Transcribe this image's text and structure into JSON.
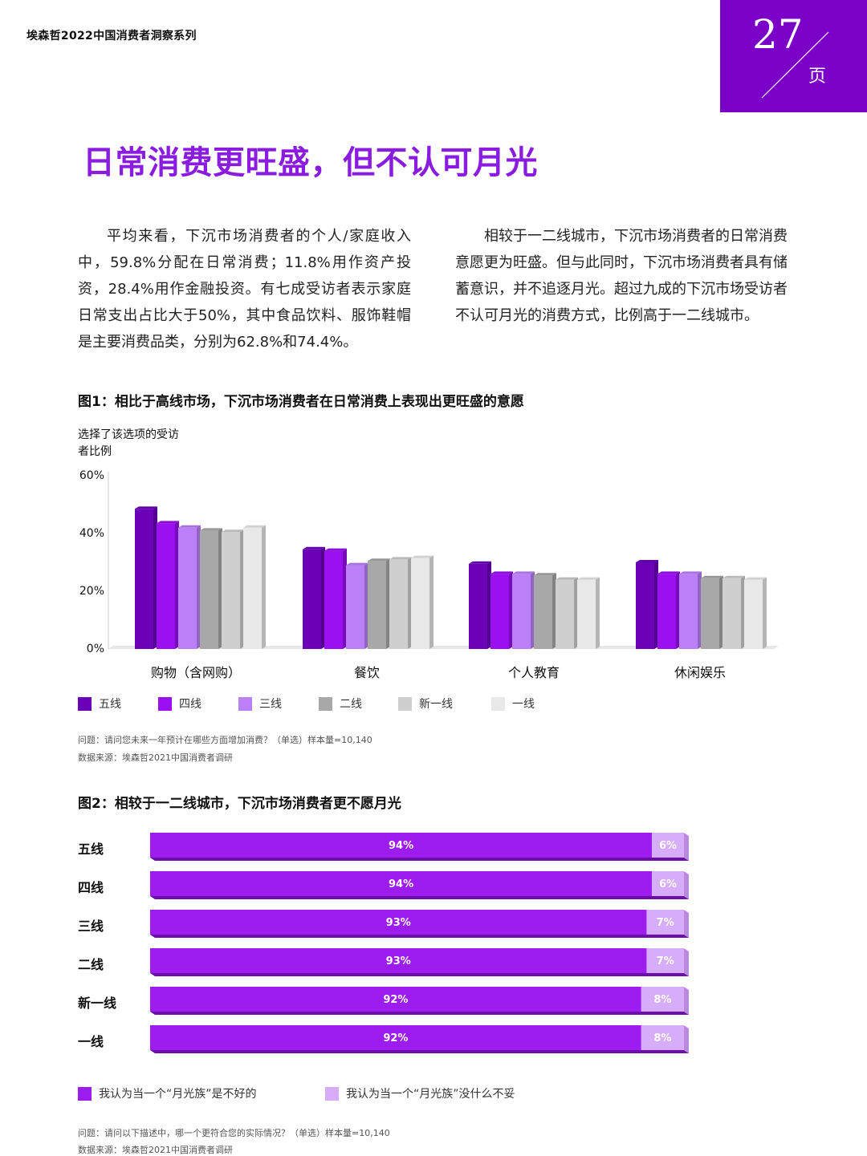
{
  "header": {
    "series_title": "埃森哲2022中国消费者洞察系列",
    "page_number": "27",
    "page_unit": "页"
  },
  "headline": "日常消费更旺盛，但不认可月光",
  "paragraphs": [
    "平均来看，下沉市场消费者的个人/家庭收入中，59.8%分配在日常消费；11.8%用作资产投资，28.4%用作金融投资。有七成受访者表示家庭日常支出占比大于50%，其中食品饮料、服饰鞋帽是主要消费品类，分别为62.8%和74.4%。",
    "相较于一二线城市，下沉市场消费者的日常消费意愿更为旺盛。但与此同时，下沉市场消费者具有储蓄意识，并不追逐月光。超过九成的下沉市场受访者不认可月光的消费方式，比例高于一二线城市。"
  ],
  "figure1": {
    "title": "图1：相比于高线市场，下沉市场消费者在日常消费上表现出更旺盛的意愿",
    "note_question": "问题：请问您未来一年预计在哪些方面增加消费？（单选）样本量=10,140",
    "note_source": "数据来源：埃森哲2021中国消费者调研"
  },
  "figure2": {
    "title": "图2：相较于一二线城市，下沉市场消费者更不愿月光",
    "note_question": "问题：请问以下描述中，哪一个更符合您的实际情况？（单选）样本量=10,140",
    "note_source": "数据来源：埃森哲2021中国消费者调研"
  },
  "chart_data": [
    {
      "type": "bar",
      "ylabel": "选择了该选项的受访者比例",
      "ylim": [
        0,
        60
      ],
      "yticks": [
        "0%",
        "20%",
        "40%",
        "60%"
      ],
      "categories": [
        "购物（含网购）",
        "餐饮",
        "个人教育",
        "休闲娱乐"
      ],
      "legend_position": "bottom",
      "series": [
        {
          "name": "五线",
          "color": "#6a00b8",
          "values": [
            48.5,
            34.5,
            29.5,
            30
          ]
        },
        {
          "name": "四线",
          "color": "#9a10f0",
          "values": [
            43.5,
            34,
            26,
            26
          ]
        },
        {
          "name": "三线",
          "color": "#bb80f8",
          "values": [
            42,
            29,
            26,
            26
          ]
        },
        {
          "name": "二线",
          "color": "#a8a8a8",
          "values": [
            41,
            30.5,
            25.5,
            24.5
          ]
        },
        {
          "name": "新一线",
          "color": "#cfcfcf",
          "values": [
            40.5,
            31,
            24,
            24.5
          ]
        },
        {
          "name": "一线",
          "color": "#e8e8e8",
          "values": [
            42,
            31.5,
            24,
            24
          ]
        }
      ]
    },
    {
      "type": "bar",
      "orientation": "horizontal",
      "stacked": true,
      "categories": [
        "五线",
        "四线",
        "三线",
        "二线",
        "新一线",
        "一线"
      ],
      "legend_position": "bottom",
      "series": [
        {
          "name": "我认为当一个“月光族”是不好的",
          "color": "#9d1cf0",
          "values": [
            94,
            94,
            93,
            93,
            92,
            92
          ],
          "labels": [
            "94%",
            "94%",
            "93%",
            "93%",
            "92%",
            "92%"
          ]
        },
        {
          "name": "我认为当一个“月光族”没什么不妥",
          "color": "#d7acf9",
          "values": [
            6,
            6,
            7,
            7,
            8,
            8
          ],
          "labels": [
            "6%",
            "6%",
            "7%",
            "7%",
            "8%",
            "8%"
          ]
        }
      ]
    }
  ]
}
